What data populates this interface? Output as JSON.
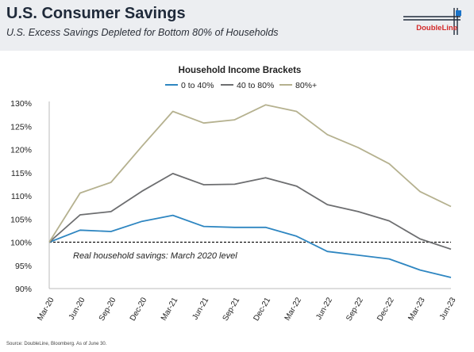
{
  "header": {
    "title": "U.S. Consumer Savings",
    "subtitle": "U.S. Excess Savings Depleted for Bottom 80% of Households",
    "logo_text": "DoubleLine"
  },
  "footer": {
    "source": "Source: DoubleLine, Bloomberg. As of June 30."
  },
  "chart_data": {
    "type": "line",
    "title": "Household Income Brackets",
    "categories": [
      "Mar-20",
      "Jun-20",
      "Sep-20",
      "Dec-20",
      "Mar-21",
      "Jun-21",
      "Sep-21",
      "Dec-21",
      "Mar-22",
      "Jun-22",
      "Sep-22",
      "Dec-22",
      "Mar-23",
      "Jun-23"
    ],
    "series": [
      {
        "name": "0 to 40%",
        "color": "#2e86c1",
        "values": [
          100,
          102.6,
          102.3,
          104.5,
          105.8,
          103.4,
          103.2,
          103.2,
          101.3,
          98.0,
          97.2,
          96.4,
          94.0,
          92.4
        ]
      },
      {
        "name": "40 to 80%",
        "color": "#6d6e70",
        "values": [
          100,
          105.9,
          106.6,
          111.0,
          114.8,
          112.4,
          112.5,
          113.9,
          112.1,
          108.1,
          106.6,
          104.6,
          100.7,
          98.5
        ]
      },
      {
        "name": "80%+",
        "color": "#b5b18f",
        "values": [
          100,
          110.6,
          112.9,
          120.7,
          128.2,
          125.7,
          126.4,
          129.6,
          128.2,
          123.2,
          120.4,
          116.9,
          110.9,
          107.7
        ]
      }
    ],
    "yticks": [
      "90%",
      "95%",
      "100%",
      "105%",
      "110%",
      "115%",
      "120%",
      "125%",
      "130%"
    ],
    "ylim": [
      90,
      130
    ],
    "reference_line": {
      "value": 100,
      "style": "dashed"
    },
    "annotation": "Real household savings: March 2020 level",
    "legend_position": "top-center",
    "grid": false
  }
}
